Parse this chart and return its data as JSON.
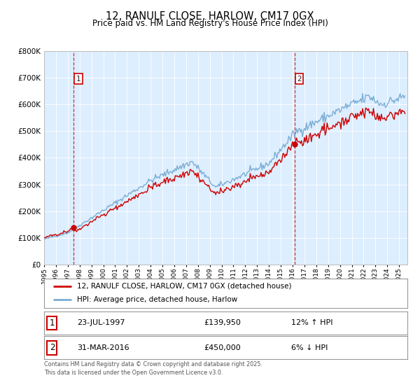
{
  "title": "12, RANULF CLOSE, HARLOW, CM17 0GX",
  "subtitle": "Price paid vs. HM Land Registry's House Price Index (HPI)",
  "sale1_date_label": "23-JUL-1997",
  "sale1_year": 1997,
  "sale1_month": 7,
  "sale1_price": 139950,
  "sale2_date_label": "31-MAR-2016",
  "sale2_year": 2016,
  "sale2_month": 3,
  "sale2_price": 450000,
  "legend_line1": "12, RANULF CLOSE, HARLOW, CM17 0GX (detached house)",
  "legend_line2": "HPI: Average price, detached house, Harlow",
  "table_row1": [
    "1",
    "23-JUL-1997",
    "£139,950",
    "12% ↑ HPI"
  ],
  "table_row2": [
    "2",
    "31-MAR-2016",
    "£450,000",
    "6% ↓ HPI"
  ],
  "footer": "Contains HM Land Registry data © Crown copyright and database right 2025.\nThis data is licensed under the Open Government Licence v3.0.",
  "line_color_property": "#cc0000",
  "line_color_hpi": "#7aadd4",
  "background_color": "#ddeeff",
  "ylim_max": 800000,
  "start_year": 1995,
  "end_year": 2025
}
